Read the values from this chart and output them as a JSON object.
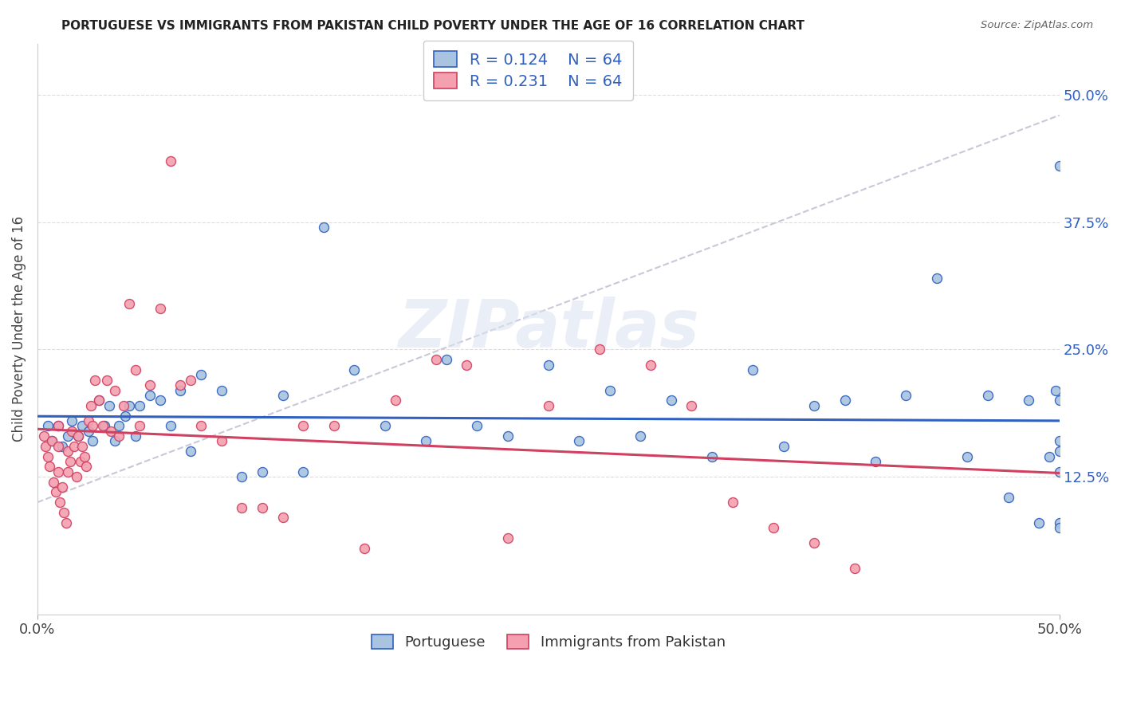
{
  "title": "PORTUGUESE VS IMMIGRANTS FROM PAKISTAN CHILD POVERTY UNDER THE AGE OF 16 CORRELATION CHART",
  "source": "Source: ZipAtlas.com",
  "ylabel": "Child Poverty Under the Age of 16",
  "ytick_labels": [
    "12.5%",
    "25.0%",
    "37.5%",
    "50.0%"
  ],
  "ytick_values": [
    0.125,
    0.25,
    0.375,
    0.5
  ],
  "xlim": [
    0.0,
    0.5
  ],
  "ylim": [
    -0.01,
    0.55
  ],
  "legend_R_blue": "0.124",
  "legend_N_blue": "64",
  "legend_R_pink": "0.231",
  "legend_N_pink": "64",
  "blue_scatter_x": [
    0.005,
    0.007,
    0.01,
    0.012,
    0.015,
    0.017,
    0.02,
    0.022,
    0.025,
    0.027,
    0.03,
    0.033,
    0.035,
    0.038,
    0.04,
    0.043,
    0.045,
    0.048,
    0.05,
    0.055,
    0.06,
    0.065,
    0.07,
    0.075,
    0.08,
    0.09,
    0.1,
    0.11,
    0.12,
    0.13,
    0.14,
    0.155,
    0.17,
    0.19,
    0.2,
    0.215,
    0.23,
    0.25,
    0.265,
    0.28,
    0.295,
    0.31,
    0.33,
    0.35,
    0.365,
    0.38,
    0.395,
    0.41,
    0.425,
    0.44,
    0.455,
    0.465,
    0.475,
    0.485,
    0.49,
    0.495,
    0.498,
    0.5,
    0.5,
    0.5,
    0.5,
    0.5,
    0.5,
    0.5
  ],
  "blue_scatter_y": [
    0.175,
    0.16,
    0.175,
    0.155,
    0.165,
    0.18,
    0.165,
    0.175,
    0.17,
    0.16,
    0.2,
    0.175,
    0.195,
    0.16,
    0.175,
    0.185,
    0.195,
    0.165,
    0.195,
    0.205,
    0.2,
    0.175,
    0.21,
    0.15,
    0.225,
    0.21,
    0.125,
    0.13,
    0.205,
    0.13,
    0.37,
    0.23,
    0.175,
    0.16,
    0.24,
    0.175,
    0.165,
    0.235,
    0.16,
    0.21,
    0.165,
    0.2,
    0.145,
    0.23,
    0.155,
    0.195,
    0.2,
    0.14,
    0.205,
    0.32,
    0.145,
    0.205,
    0.105,
    0.2,
    0.08,
    0.145,
    0.21,
    0.16,
    0.08,
    0.15,
    0.43,
    0.2,
    0.075,
    0.13
  ],
  "pink_scatter_x": [
    0.003,
    0.004,
    0.005,
    0.006,
    0.007,
    0.008,
    0.009,
    0.01,
    0.01,
    0.01,
    0.011,
    0.012,
    0.013,
    0.014,
    0.015,
    0.015,
    0.016,
    0.017,
    0.018,
    0.019,
    0.02,
    0.021,
    0.022,
    0.023,
    0.024,
    0.025,
    0.026,
    0.027,
    0.028,
    0.03,
    0.032,
    0.034,
    0.036,
    0.038,
    0.04,
    0.042,
    0.045,
    0.048,
    0.05,
    0.055,
    0.06,
    0.065,
    0.07,
    0.075,
    0.08,
    0.09,
    0.1,
    0.11,
    0.12,
    0.13,
    0.145,
    0.16,
    0.175,
    0.195,
    0.21,
    0.23,
    0.25,
    0.275,
    0.3,
    0.32,
    0.34,
    0.36,
    0.38,
    0.4
  ],
  "pink_scatter_y": [
    0.165,
    0.155,
    0.145,
    0.135,
    0.16,
    0.12,
    0.11,
    0.13,
    0.155,
    0.175,
    0.1,
    0.115,
    0.09,
    0.08,
    0.15,
    0.13,
    0.14,
    0.17,
    0.155,
    0.125,
    0.165,
    0.14,
    0.155,
    0.145,
    0.135,
    0.18,
    0.195,
    0.175,
    0.22,
    0.2,
    0.175,
    0.22,
    0.17,
    0.21,
    0.165,
    0.195,
    0.295,
    0.23,
    0.175,
    0.215,
    0.29,
    0.435,
    0.215,
    0.22,
    0.175,
    0.16,
    0.095,
    0.095,
    0.085,
    0.175,
    0.175,
    0.055,
    0.2,
    0.24,
    0.235,
    0.065,
    0.195,
    0.25,
    0.235,
    0.195,
    0.1,
    0.075,
    0.06,
    0.035
  ],
  "blue_color": "#a8c4e0",
  "pink_color": "#f4a0b0",
  "blue_line_color": "#3060c0",
  "pink_line_color": "#d04060",
  "grid_color": "#dddddd",
  "dash_line_color": "#c8c8d8",
  "watermark_color": "#dde4f0",
  "marker_size": 75,
  "background_color": "#ffffff"
}
